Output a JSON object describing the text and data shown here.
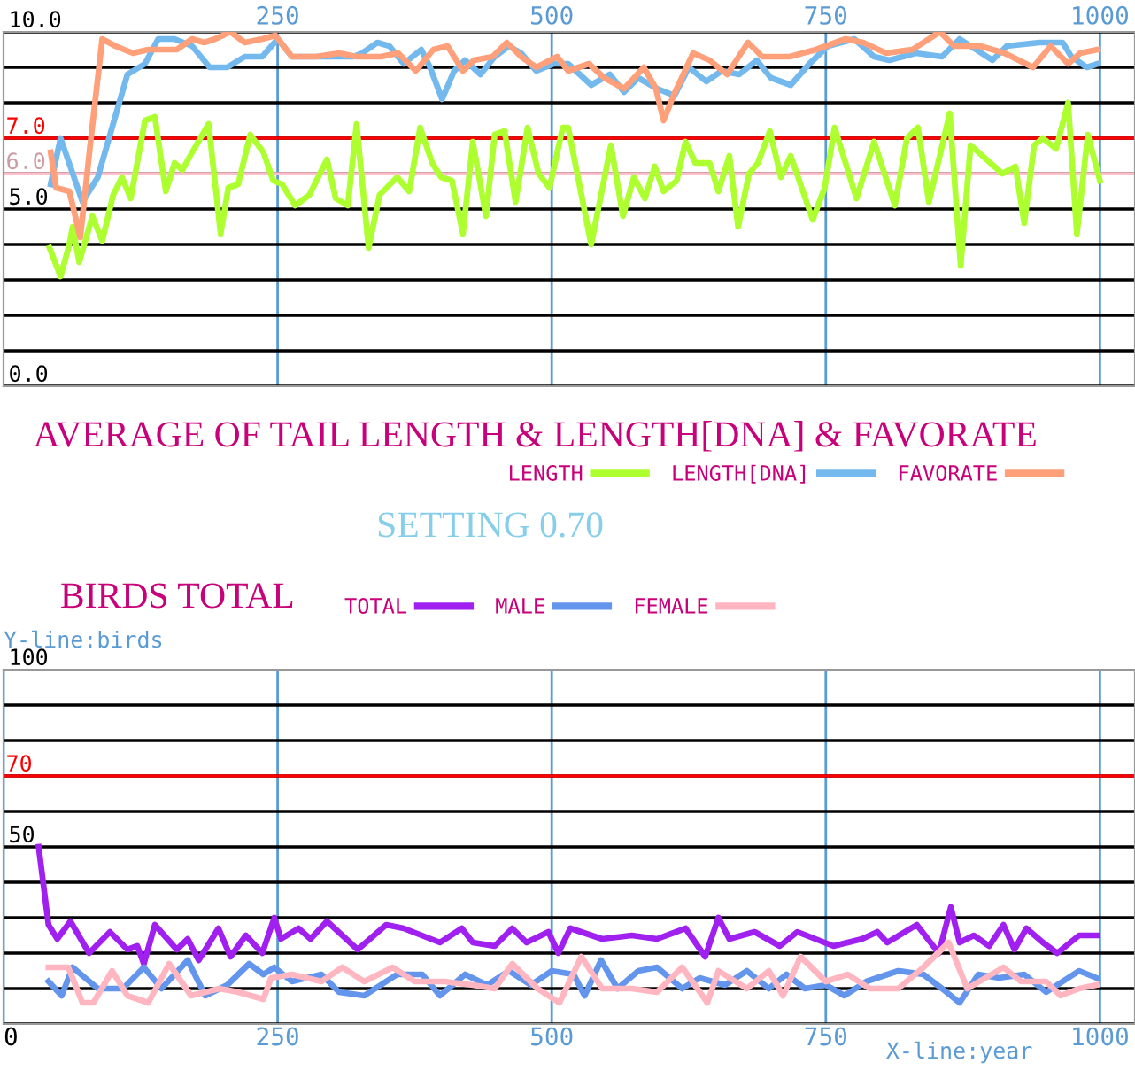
{
  "chart_data": [
    {
      "type": "line",
      "title": "AVERAGE OF TAIL LENGTH & LENGTH[DNA] & FAVORATE",
      "annotations": [
        "SETTING 0.70"
      ],
      "xlim": [
        0,
        1032
      ],
      "xticks": [
        250,
        500,
        750,
        1000
      ],
      "ylim": [
        0,
        10
      ],
      "yticks": [
        {
          "value": 0,
          "label": "0.0"
        },
        {
          "value": 1,
          "label": null
        },
        {
          "value": 2,
          "label": null
        },
        {
          "value": 3,
          "label": null
        },
        {
          "value": 4,
          "label": null
        },
        {
          "value": 5,
          "label": "5.0"
        },
        {
          "value": 6,
          "label": null
        },
        {
          "value": 7,
          "label": null
        },
        {
          "value": 8,
          "label": null
        },
        {
          "value": 9,
          "label": null
        },
        {
          "value": 10,
          "label": "10.0"
        }
      ],
      "grid": true,
      "legend": "bottom",
      "tick_labels": "x",
      "ref_lines": [
        {
          "axis": "y",
          "value": 7,
          "label": "7.0",
          "color": "#ff0000"
        },
        {
          "axis": "y",
          "value": 6,
          "label": "6.0",
          "color": "#ffc0cb"
        }
      ],
      "series": [
        {
          "name": "LENGTH",
          "color": "#adff2f",
          "x": [
            42,
            52,
            60,
            63,
            69,
            81,
            90,
            100,
            108,
            116,
            129,
            138,
            148,
            156,
            163,
            172,
            187,
            198,
            205,
            214,
            225,
            237,
            246,
            254,
            266,
            279,
            295,
            303,
            314,
            322,
            333,
            343,
            359,
            370,
            380,
            391,
            399,
            409,
            419,
            428,
            440,
            448,
            457,
            467,
            478,
            488,
            498,
            510,
            515,
            536,
            554,
            565,
            575,
            585,
            594,
            602,
            614,
            622,
            631,
            644,
            652,
            662,
            670,
            680,
            688,
            699,
            709,
            718,
            738,
            749,
            758,
            778,
            794,
            813,
            824,
            834,
            844,
            863,
            873,
            882,
            911,
            923,
            931,
            940,
            948,
            960,
            971,
            979,
            989,
            1000
          ],
          "values": [
            3.9,
            3.1,
            4.0,
            4.5,
            3.5,
            4.8,
            4.1,
            5.4,
            5.9,
            5.3,
            7.5,
            7.6,
            5.5,
            6.3,
            6.1,
            6.6,
            7.4,
            4.3,
            5.6,
            5.7,
            7.1,
            6.6,
            5.8,
            5.7,
            5.1,
            5.4,
            6.4,
            5.3,
            5.1,
            7.4,
            3.9,
            5.4,
            5.9,
            5.5,
            7.3,
            6.3,
            5.9,
            5.8,
            4.3,
            6.9,
            4.8,
            7.1,
            7.2,
            5.2,
            7.3,
            6.0,
            5.6,
            7.3,
            7.3,
            4.0,
            6.8,
            4.8,
            5.9,
            5.3,
            6.2,
            5.5,
            5.8,
            6.9,
            6.3,
            6.3,
            5.5,
            6.5,
            4.5,
            6.0,
            6.3,
            7.2,
            5.9,
            6.5,
            4.7,
            5.6,
            7.3,
            5.3,
            6.9,
            5.1,
            7.0,
            7.3,
            5.2,
            7.7,
            3.4,
            6.8,
            6.0,
            6.2,
            4.6,
            6.8,
            7.0,
            6.7,
            8.0,
            4.3,
            7.1,
            5.8
          ]
        },
        {
          "name": "LENGTH[DNA]",
          "color": "#74b9ee",
          "x": [
            43,
            52,
            62,
            72,
            86,
            99,
            113,
            129,
            141,
            156,
            172,
            188,
            204,
            220,
            236,
            250,
            263,
            285,
            306,
            319,
            327,
            341,
            352,
            365,
            381,
            389,
            400,
            411,
            421,
            435,
            448,
            461,
            472,
            486,
            502,
            515,
            536,
            553,
            566,
            579,
            596,
            612,
            625,
            641,
            655,
            671,
            687,
            700,
            718,
            735,
            752,
            776,
            794,
            808,
            832,
            856,
            872,
            902,
            915,
            945,
            966,
            974,
            988,
            998
          ],
          "values": [
            5.7,
            7.0,
            6.1,
            5.2,
            5.9,
            7.3,
            8.8,
            9.1,
            9.8,
            9.8,
            9.6,
            9.0,
            9.0,
            9.3,
            9.3,
            9.8,
            9.3,
            9.3,
            9.3,
            9.3,
            9.4,
            9.7,
            9.6,
            9.1,
            9.5,
            9.0,
            8.1,
            8.9,
            9.2,
            8.8,
            9.3,
            9.6,
            9.4,
            8.9,
            9.1,
            9.1,
            8.5,
            8.8,
            8.3,
            8.7,
            8.4,
            8.2,
            9.0,
            8.6,
            8.9,
            8.8,
            9.2,
            8.7,
            8.5,
            9.1,
            9.6,
            9.8,
            9.3,
            9.2,
            9.4,
            9.3,
            9.8,
            9.2,
            9.6,
            9.7,
            9.7,
            9.3,
            9.0,
            9.1
          ]
        },
        {
          "name": "FAVORATE",
          "color": "#ffa07a",
          "x": [
            43,
            48,
            60,
            70,
            79,
            90,
            102,
            118,
            132,
            144,
            158,
            172,
            183,
            193,
            207,
            220,
            236,
            248,
            263,
            285,
            306,
            322,
            344,
            360,
            376,
            392,
            405,
            419,
            429,
            446,
            459,
            472,
            486,
            505,
            515,
            534,
            548,
            566,
            584,
            595,
            602,
            611,
            629,
            644,
            660,
            679,
            692,
            717,
            741,
            768,
            784,
            805,
            829,
            854,
            867,
            891,
            913,
            939,
            955,
            971,
            982,
            998
          ],
          "values": [
            6.6,
            5.6,
            5.5,
            4.2,
            6.8,
            9.8,
            9.6,
            9.4,
            9.5,
            9.5,
            9.5,
            9.8,
            9.7,
            9.8,
            10.0,
            9.7,
            9.8,
            9.9,
            9.3,
            9.3,
            9.4,
            9.3,
            9.3,
            9.4,
            8.9,
            9.5,
            9.6,
            8.9,
            9.2,
            9.3,
            9.7,
            9.3,
            9.0,
            9.3,
            8.9,
            9.1,
            8.7,
            8.4,
            9.0,
            8.4,
            7.5,
            8.2,
            9.4,
            9.2,
            8.8,
            9.7,
            9.3,
            9.3,
            9.5,
            9.8,
            9.7,
            9.4,
            9.5,
            10.0,
            9.6,
            9.6,
            9.4,
            9.0,
            9.6,
            9.1,
            9.4,
            9.5
          ]
        }
      ]
    },
    {
      "type": "line",
      "title": "BIRDS TOTAL",
      "xlabel": "X-line:year",
      "ylabel": "Y-line:birds",
      "xlim": [
        0,
        1032
      ],
      "xticks": [
        0,
        250,
        500,
        750,
        1000
      ],
      "ylim": [
        0,
        100
      ],
      "yticks": [
        {
          "value": 0,
          "label": null
        },
        {
          "value": 10,
          "label": null
        },
        {
          "value": 20,
          "label": null
        },
        {
          "value": 30,
          "label": null
        },
        {
          "value": 40,
          "label": null
        },
        {
          "value": 50,
          "label": "50"
        },
        {
          "value": 60,
          "label": null
        },
        {
          "value": 70,
          "label": null
        },
        {
          "value": 80,
          "label": null
        },
        {
          "value": 90,
          "label": null
        },
        {
          "value": 100,
          "label": "100"
        }
      ],
      "grid": true,
      "legend": "top",
      "ref_lines": [
        {
          "axis": "y",
          "value": 70,
          "label": "70",
          "color": "#ff0000"
        }
      ],
      "series": [
        {
          "name": "TOTAL",
          "color": "#a020f0",
          "x": [
            32,
            41,
            49,
            61,
            78,
            97,
            113,
            122,
            128,
            138,
            158,
            168,
            178,
            196,
            207,
            221,
            236,
            247,
            253,
            269,
            280,
            295,
            323,
            349,
            365,
            398,
            418,
            428,
            448,
            464,
            477,
            497,
            506,
            517,
            546,
            573,
            596,
            622,
            640,
            652,
            662,
            685,
            708,
            724,
            757,
            783,
            797,
            806,
            833,
            853,
            864,
            872,
            885,
            899,
            912,
            922,
            933,
            948,
            961,
            981,
            997
          ],
          "values": [
            50,
            28,
            24,
            29,
            20,
            26,
            21,
            22,
            17,
            28,
            21,
            24,
            18,
            27,
            19,
            25,
            20,
            30,
            24,
            27,
            24,
            29,
            21,
            28,
            27,
            23,
            27,
            23,
            22,
            27,
            23,
            26,
            20,
            27,
            24,
            25,
            24,
            27,
            19,
            30,
            24,
            26,
            22,
            26,
            22,
            24,
            26,
            23,
            28,
            20,
            33,
            23,
            25,
            22,
            28,
            21,
            27,
            23,
            20,
            25,
            25
          ]
        },
        {
          "name": "MALE",
          "color": "#6495ed",
          "x": [
            41,
            53,
            63,
            86,
            109,
            128,
            144,
            168,
            184,
            204,
            224,
            237,
            247,
            263,
            290,
            306,
            329,
            359,
            382,
            398,
            421,
            441,
            461,
            481,
            500,
            520,
            530,
            545,
            560,
            579,
            596,
            619,
            635,
            658,
            678,
            698,
            714,
            731,
            750,
            767,
            787,
            816,
            839,
            856,
            872,
            889,
            908,
            931,
            951,
            981,
            997
          ],
          "values": [
            12,
            8,
            16,
            10,
            10,
            16,
            10,
            18,
            8,
            11,
            17,
            14,
            16,
            12,
            14,
            9,
            8,
            14,
            14,
            8,
            14,
            11,
            15,
            11,
            15,
            14,
            8,
            18,
            10,
            15,
            16,
            10,
            13,
            11,
            15,
            10,
            14,
            10,
            11,
            8,
            12,
            15,
            14,
            10,
            6,
            14,
            13,
            14,
            9,
            15,
            13
          ]
        },
        {
          "name": "FEMALE",
          "color": "#ffb6c1",
          "x": [
            41,
            59,
            72,
            82,
            99,
            113,
            132,
            151,
            171,
            197,
            214,
            237,
            244,
            263,
            290,
            309,
            329,
            355,
            375,
            402,
            428,
            448,
            464,
            487,
            507,
            527,
            546,
            573,
            596,
            619,
            642,
            652,
            678,
            698,
            711,
            727,
            750,
            770,
            790,
            816,
            839,
            862,
            879,
            912,
            928,
            951,
            964,
            981,
            997
          ],
          "values": [
            16,
            16,
            6,
            6,
            15,
            8,
            6,
            17,
            8,
            10,
            9,
            7,
            13,
            14,
            12,
            16,
            12,
            16,
            12,
            12,
            11,
            10,
            17,
            10,
            6,
            19,
            10,
            10,
            9,
            16,
            6,
            15,
            10,
            15,
            8,
            19,
            12,
            14,
            10,
            10,
            16,
            23,
            10,
            16,
            12,
            12,
            8,
            10,
            11
          ]
        }
      ]
    }
  ]
}
